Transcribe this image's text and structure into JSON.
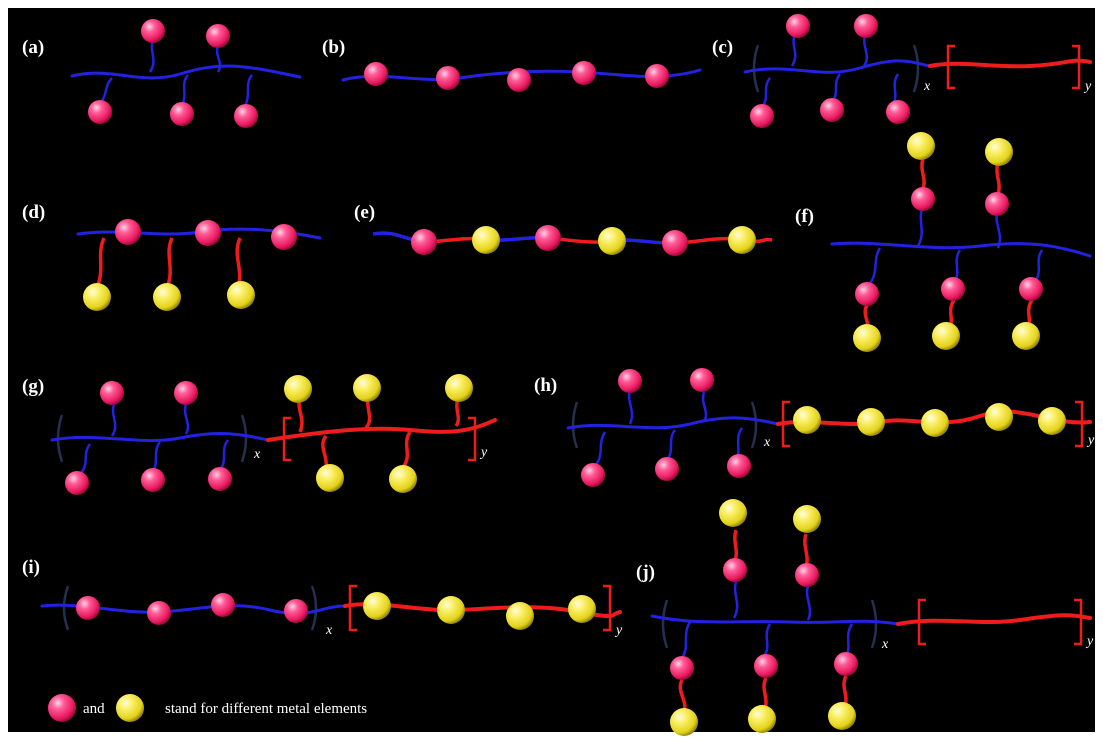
{
  "colors": {
    "background": "#000000",
    "backbone_blue": "#2222e0",
    "chain_red": "#ee1c1c",
    "bracket_blue": "#23314f",
    "metal_pink": "#e8175d",
    "metal_yellow": "#e3d21a"
  },
  "panels": [
    {
      "id": "a",
      "label": "(a)"
    },
    {
      "id": "b",
      "label": "(b)"
    },
    {
      "id": "c",
      "label": "(c)",
      "sub_x": "x",
      "sub_y": "y"
    },
    {
      "id": "d",
      "label": "(d)"
    },
    {
      "id": "e",
      "label": "(e)"
    },
    {
      "id": "f",
      "label": "(f)"
    },
    {
      "id": "g",
      "label": "(g)",
      "sub_x": "x",
      "sub_y": "y"
    },
    {
      "id": "h",
      "label": "(h)",
      "sub_x": "x",
      "sub_y": "y"
    },
    {
      "id": "i",
      "label": "(i)",
      "sub_x": "x",
      "sub_y": "y"
    },
    {
      "id": "j",
      "label": "(j)",
      "sub_x": "x",
      "sub_y": "y"
    }
  ],
  "legend": {
    "items": [
      {
        "metal": "pink",
        "icon": "pink-metal-sphere-icon"
      },
      {
        "metal": "yellow",
        "icon": "yellow-metal-sphere-icon"
      }
    ],
    "and_text": "and",
    "text": "stand for different metal elements"
  }
}
